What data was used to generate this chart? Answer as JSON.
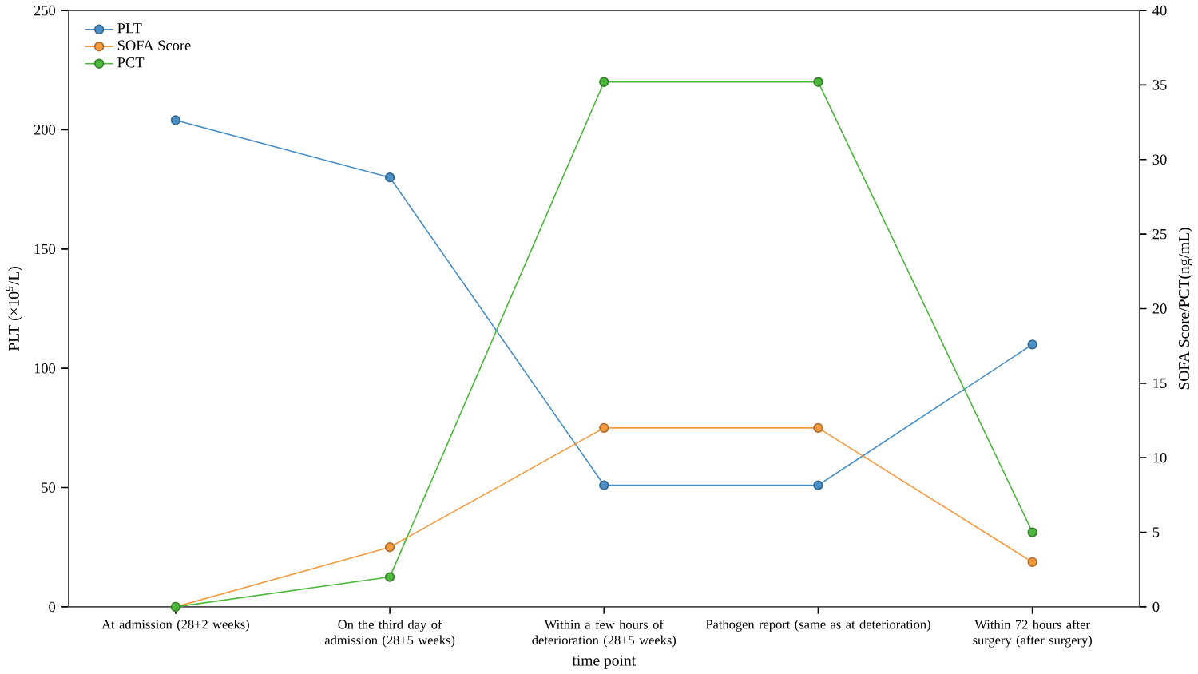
{
  "chart_data": {
    "type": "line",
    "xlabel": "time point",
    "ylabel": "PLT (×10$^{9}$/L)",
    "y2label": "SOFA Score/PCT(ng/mL)",
    "categories": [
      "At admission (28+2 weeks)",
      "On the third day of admission (28+5 weeks)",
      "Within a few hours of deterioration (28+5 weeks)",
      "Pathogen report (same as at deterioration)",
      "Within 72 hours after surgery (after surgery)"
    ],
    "series": [
      {
        "name": "PLT",
        "color": "#4a90c8",
        "values": [
          204,
          180,
          51,
          51,
          110
        ]
      },
      {
        "name": "SOFA Score",
        "color": "#f59a3c",
        "values": [
          0,
          4,
          12,
          12,
          3
        ],
        "axis": "y2"
      },
      {
        "name": "PCT",
        "color": "#4cb83c",
        "values": [
          0,
          2,
          35.2,
          35.2,
          5
        ],
        "axis": "y2"
      }
    ],
    "ylim": [
      0,
      250
    ],
    "yticks": [
      0,
      50,
      100,
      150,
      200,
      250
    ],
    "y2lim": [
      0,
      40
    ],
    "y2ticks": [
      0,
      5,
      10,
      15,
      20,
      25,
      30,
      35,
      40
    ],
    "legend": "top left",
    "marker": "circle",
    "grid": false
  }
}
